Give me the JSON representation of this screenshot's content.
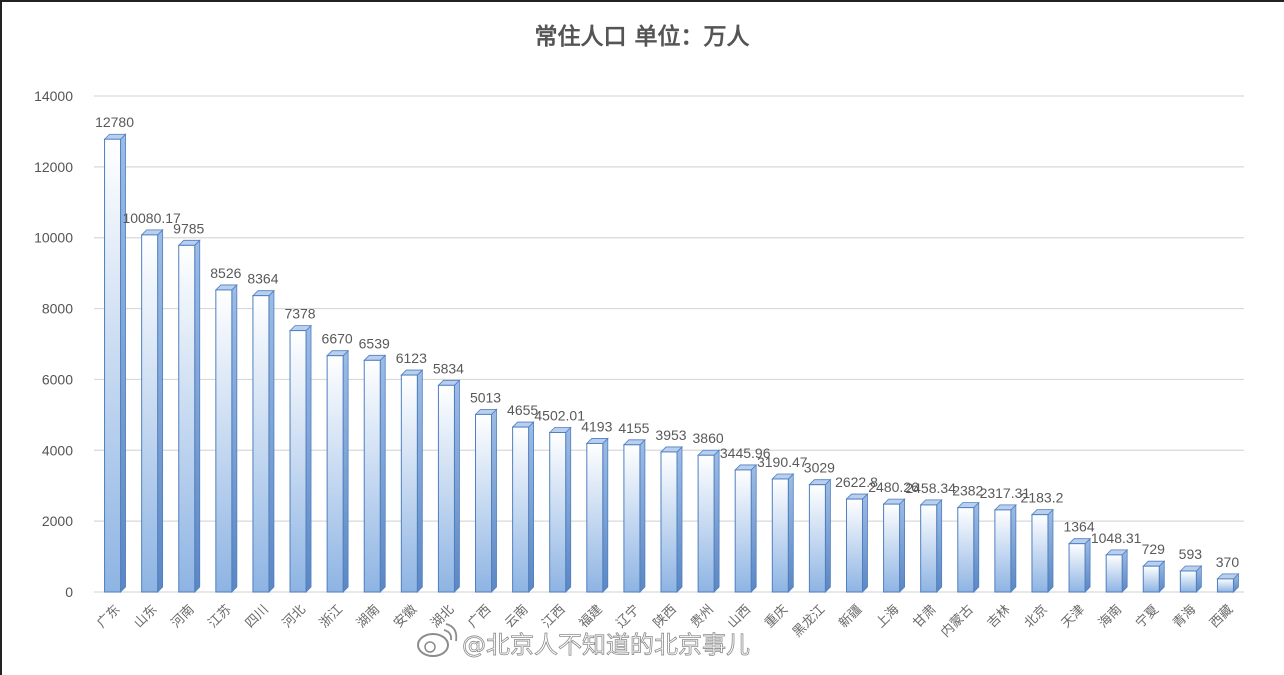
{
  "chart_data": {
    "type": "bar",
    "title": "常住人口 单位：万人",
    "xlabel": "",
    "ylabel": "",
    "ylim": [
      0,
      14000
    ],
    "yticks": [
      0,
      2000,
      4000,
      6000,
      8000,
      10000,
      12000,
      14000
    ],
    "grid": true,
    "legend": "none",
    "categories": [
      "广东",
      "山东",
      "河南",
      "江苏",
      "四川",
      "河北",
      "浙江",
      "湖南",
      "安徽",
      "湖北",
      "广西",
      "云南",
      "江西",
      "福建",
      "辽宁",
      "陕西",
      "贵州",
      "山西",
      "重庆",
      "黑龙江",
      "新疆",
      "上海",
      "甘肃",
      "内蒙古",
      "吉林",
      "北京",
      "天津",
      "海南",
      "宁夏",
      "青海",
      "西藏"
    ],
    "values": [
      12780,
      10080.17,
      9785,
      8526,
      8364,
      7378,
      6670,
      6539,
      6123,
      5834,
      5013,
      4655,
      4502.01,
      4193,
      4155,
      3953,
      3860,
      3445.96,
      3190.47,
      3029,
      2622.8,
      2480.26,
      2458.34,
      2382,
      2317.31,
      2183.2,
      1364,
      1048.31,
      729,
      593,
      370
    ],
    "data_labels": [
      "12780",
      "10080.17",
      "9785",
      "8526",
      "8364",
      "7378",
      "6670",
      "6539",
      "6123",
      "5834",
      "5013",
      "4655",
      "4502.01",
      "4193",
      "4155",
      "3953",
      "3860",
      "3445.96",
      "3190.47",
      "3029",
      "2622.8",
      "2480.26",
      "2458.34",
      "2382",
      "2317.31",
      "2183.2",
      "1364",
      "1048.31",
      "729",
      "593",
      "370"
    ],
    "colors": {
      "bar_light": "#ffffff",
      "bar_dark": "#8eb4e3",
      "bar_edge": "#4f7fbf",
      "bar_top": "#b8cff0",
      "grid": "#d9d9d9"
    }
  },
  "watermark": "@北京人不知道的北京事儿"
}
